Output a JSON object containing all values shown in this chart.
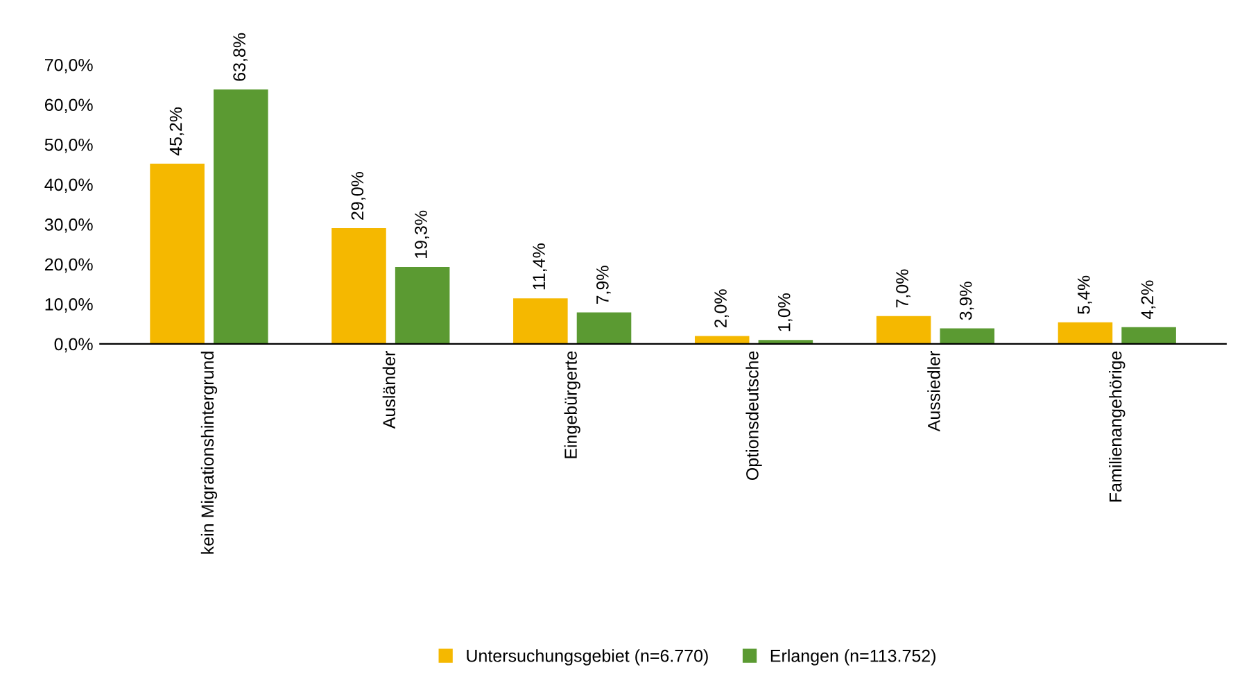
{
  "chart_data": {
    "type": "bar",
    "categories": [
      "kein Migrationshintergrund",
      "Ausländer",
      "Eingebürgerte",
      "Optionsdeutsche",
      "Aussiedler",
      "Familienangehörige"
    ],
    "series": [
      {
        "name": "Untersuchungsgebiet (n=6.770)",
        "color": "#f5b800",
        "values": [
          45.2,
          29.0,
          11.4,
          2.0,
          7.0,
          5.4
        ],
        "value_labels": [
          "45,2%",
          "29,0%",
          "11,4%",
          "2,0%",
          "7,0%",
          "5,4%"
        ]
      },
      {
        "name": "Erlangen (n=113.752)",
        "color": "#5b9a32",
        "values": [
          63.8,
          19.3,
          7.9,
          1.0,
          3.9,
          4.2
        ],
        "value_labels": [
          "63,8%",
          "19,3%",
          "7,9%",
          "1,0%",
          "3,9%",
          "4,2%"
        ]
      }
    ],
    "ylim": [
      0,
      70
    ],
    "yticks": [
      {
        "value": 0,
        "label": "0,0%"
      },
      {
        "value": 10,
        "label": "10,0%"
      },
      {
        "value": 20,
        "label": "20,0%"
      },
      {
        "value": 30,
        "label": "30,0%"
      },
      {
        "value": 40,
        "label": "40,0%"
      },
      {
        "value": 50,
        "label": "50,0%"
      },
      {
        "value": 60,
        "label": "60,0%"
      },
      {
        "value": 70,
        "label": "70,0%"
      }
    ],
    "grid": false,
    "legend": "bottom"
  }
}
